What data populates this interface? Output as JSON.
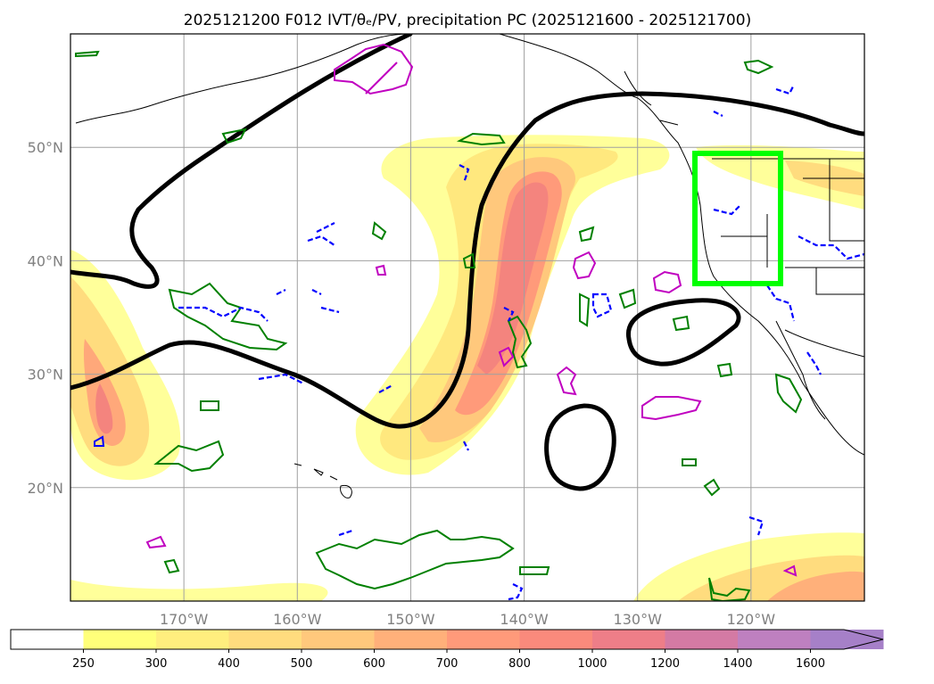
{
  "chart_data": {
    "type": "heatmap",
    "title": "2025121200 F012 IVT/θₑ/PV, precipitation PC (2025121600 - 2025121700)",
    "xlabel": "",
    "ylabel": "",
    "lon_range": [
      -180,
      -110
    ],
    "lat_range": [
      10,
      60
    ],
    "x_ticks": [
      {
        "value": -170,
        "label": "170°W"
      },
      {
        "value": -160,
        "label": "160°W"
      },
      {
        "value": -150,
        "label": "150°W"
      },
      {
        "value": -140,
        "label": "140°W"
      },
      {
        "value": -130,
        "label": "130°W"
      },
      {
        "value": -120,
        "label": "120°W"
      }
    ],
    "y_ticks": [
      {
        "value": 50,
        "label": "50°N"
      },
      {
        "value": 40,
        "label": "40°N"
      },
      {
        "value": 30,
        "label": "30°N"
      },
      {
        "value": 20,
        "label": "20°N"
      }
    ],
    "grid": true,
    "colorbar": {
      "levels": [
        250,
        300,
        400,
        500,
        600,
        700,
        800,
        1000,
        1200,
        1400,
        1600
      ],
      "colors": [
        "#ffff7a",
        "#ffee7e",
        "#ffdc7e",
        "#ffc87c",
        "#ffb07a",
        "#ff9a7a",
        "#fa8a7c",
        "#ee7e88",
        "#d47aa4",
        "#be80c0",
        "#a680c8"
      ],
      "extend": "max"
    },
    "ivt_plumes": [
      {
        "name": "central atmospheric river",
        "max_value": 1000,
        "lat_span": [
          20,
          52
        ],
        "lon_span": [
          -153,
          -132
        ]
      },
      {
        "name": "western plume",
        "max_value": 800,
        "lat_span": [
          20,
          39
        ],
        "lon_span": [
          -180,
          -170
        ]
      },
      {
        "name": "northern branch",
        "max_value": 400,
        "lat_span": [
          47,
          52
        ],
        "lon_span": [
          -155,
          -110
        ]
      },
      {
        "name": "southeast plume",
        "max_value": 500,
        "lat_span": [
          10,
          16
        ],
        "lon_span": [
          -133,
          -110
        ]
      }
    ],
    "precip_box": {
      "lon": [
        -125,
        -117
      ],
      "lat": [
        38,
        49.5
      ],
      "color": "#00ff00"
    },
    "contour_colors": {
      "theta_e_line": "#000000",
      "pv_green": "#008000",
      "pv_blue_dashed": "#0000ff",
      "pv_magenta": "#c000c0"
    },
    "land_color": "#000000",
    "gridline_color": "#a0a0a0"
  }
}
